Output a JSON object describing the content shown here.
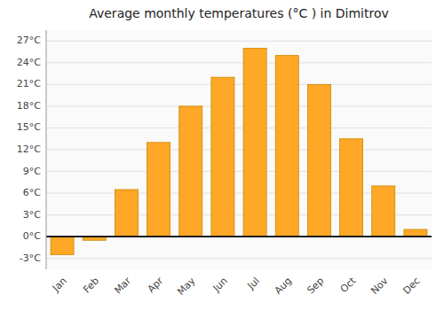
{
  "chart_data": {
    "type": "bar",
    "title": "Average monthly temperatures (°C ) in Dimitrov",
    "categories": [
      "Jan",
      "Feb",
      "Mar",
      "Apr",
      "May",
      "Jun",
      "Jul",
      "Aug",
      "Sep",
      "Oct",
      "Nov",
      "Dec"
    ],
    "values": [
      -2.5,
      -0.5,
      6.5,
      13.0,
      18.0,
      22.0,
      26.0,
      25.0,
      21.0,
      13.5,
      7.0,
      1.0
    ],
    "color": "#FFA726",
    "ylim": [
      -4.5,
      28.5
    ],
    "yticks": [
      {
        "value": -3,
        "label": "-3°C"
      },
      {
        "value": 0,
        "label": "0°C"
      },
      {
        "value": 3,
        "label": "3°C"
      },
      {
        "value": 6,
        "label": "6°C"
      },
      {
        "value": 9,
        "label": "9°C"
      },
      {
        "value": 12,
        "label": "12°C"
      },
      {
        "value": 15,
        "label": "15°C"
      },
      {
        "value": 18,
        "label": "18°C"
      },
      {
        "value": 21,
        "label": "21°C"
      },
      {
        "value": 24,
        "label": "24°C"
      },
      {
        "value": 27,
        "label": "27°C"
      }
    ],
    "grid": true
  }
}
